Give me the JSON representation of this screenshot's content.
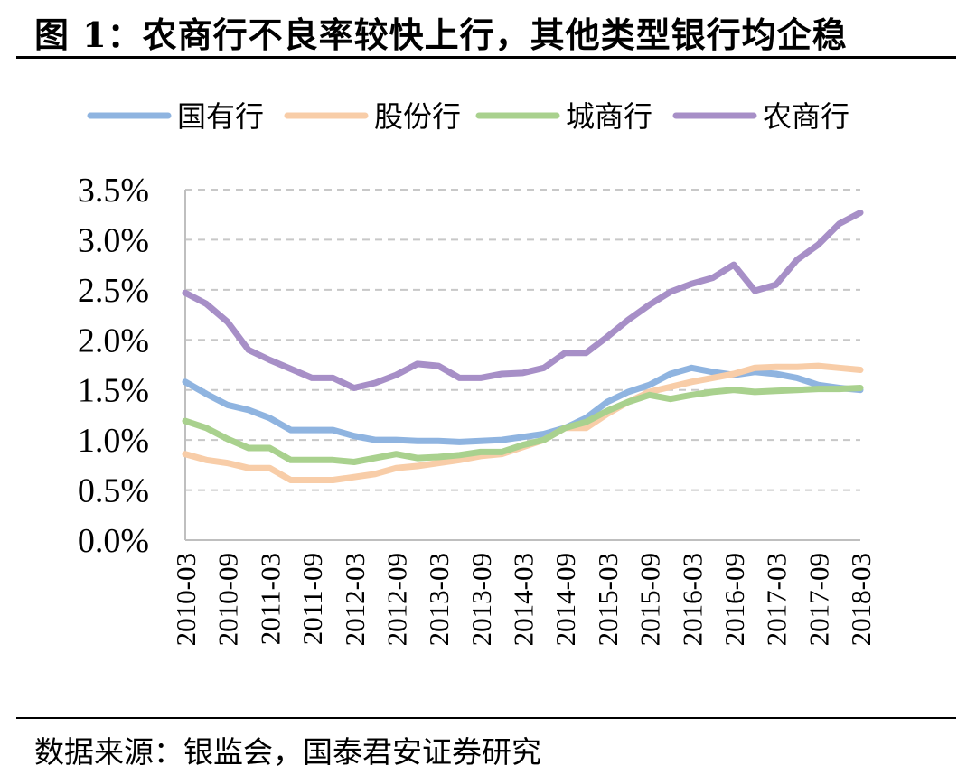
{
  "title": "图 1：农商行不良率较快上行，其他类型银行均企稳",
  "source": "数据来源：银监会，国泰君安证券研究",
  "chart_data": {
    "type": "line",
    "ylim": [
      0,
      3.5
    ],
    "yticks": [
      "0.0%",
      "0.5%",
      "1.0%",
      "1.5%",
      "2.0%",
      "2.5%",
      "3.0%",
      "3.5%"
    ],
    "ytick_values": [
      0,
      0.5,
      1.0,
      1.5,
      2.0,
      2.5,
      3.0,
      3.5
    ],
    "grid": true,
    "legend_position": "top",
    "x": [
      "2010-03",
      "2010-06",
      "2010-09",
      "2010-12",
      "2011-03",
      "2011-06",
      "2011-09",
      "2011-12",
      "2012-03",
      "2012-06",
      "2012-09",
      "2012-12",
      "2013-03",
      "2013-06",
      "2013-09",
      "2013-12",
      "2014-03",
      "2014-06",
      "2014-09",
      "2014-12",
      "2015-03",
      "2015-06",
      "2015-09",
      "2015-12",
      "2016-03",
      "2016-06",
      "2016-09",
      "2016-12",
      "2017-03",
      "2017-06",
      "2017-09",
      "2017-12",
      "2018-03"
    ],
    "xtick_labels": [
      "2010-03",
      "2010-09",
      "2011-03",
      "2011-09",
      "2012-03",
      "2012-09",
      "2013-03",
      "2013-09",
      "2014-03",
      "2014-09",
      "2015-03",
      "2015-09",
      "2016-03",
      "2016-09",
      "2017-03",
      "2017-09",
      "2018-03"
    ],
    "series": [
      {
        "name": "国有行",
        "color": "#8fb4e0",
        "values": [
          1.58,
          1.46,
          1.35,
          1.3,
          1.22,
          1.1,
          1.1,
          1.1,
          1.04,
          1.0,
          1.0,
          0.99,
          0.99,
          0.98,
          0.99,
          1.0,
          1.03,
          1.06,
          1.12,
          1.22,
          1.38,
          1.48,
          1.55,
          1.66,
          1.72,
          1.68,
          1.65,
          1.68,
          1.66,
          1.62,
          1.55,
          1.52,
          1.5
        ]
      },
      {
        "name": "股份行",
        "color": "#f8cda8",
        "values": [
          0.86,
          0.8,
          0.77,
          0.72,
          0.72,
          0.6,
          0.6,
          0.6,
          0.63,
          0.66,
          0.72,
          0.74,
          0.77,
          0.8,
          0.84,
          0.86,
          0.93,
          1.0,
          1.12,
          1.12,
          1.26,
          1.38,
          1.48,
          1.53,
          1.58,
          1.62,
          1.66,
          1.72,
          1.73,
          1.73,
          1.74,
          1.72,
          1.7
        ]
      },
      {
        "name": "城商行",
        "color": "#a9d18e",
        "values": [
          1.19,
          1.12,
          1.01,
          0.92,
          0.92,
          0.8,
          0.8,
          0.8,
          0.78,
          0.82,
          0.86,
          0.82,
          0.83,
          0.85,
          0.88,
          0.88,
          0.95,
          1.0,
          1.12,
          1.18,
          1.29,
          1.38,
          1.45,
          1.41,
          1.45,
          1.48,
          1.5,
          1.48,
          1.49,
          1.5,
          1.51,
          1.51,
          1.52
        ]
      },
      {
        "name": "农商行",
        "color": "#a78fc7",
        "values": [
          2.47,
          2.36,
          2.18,
          1.9,
          1.8,
          1.71,
          1.62,
          1.62,
          1.52,
          1.57,
          1.65,
          1.76,
          1.74,
          1.62,
          1.62,
          1.66,
          1.67,
          1.72,
          1.87,
          1.87,
          2.03,
          2.2,
          2.35,
          2.48,
          2.56,
          2.62,
          2.75,
          2.49,
          2.55,
          2.8,
          2.95,
          3.16,
          3.27
        ]
      }
    ]
  }
}
